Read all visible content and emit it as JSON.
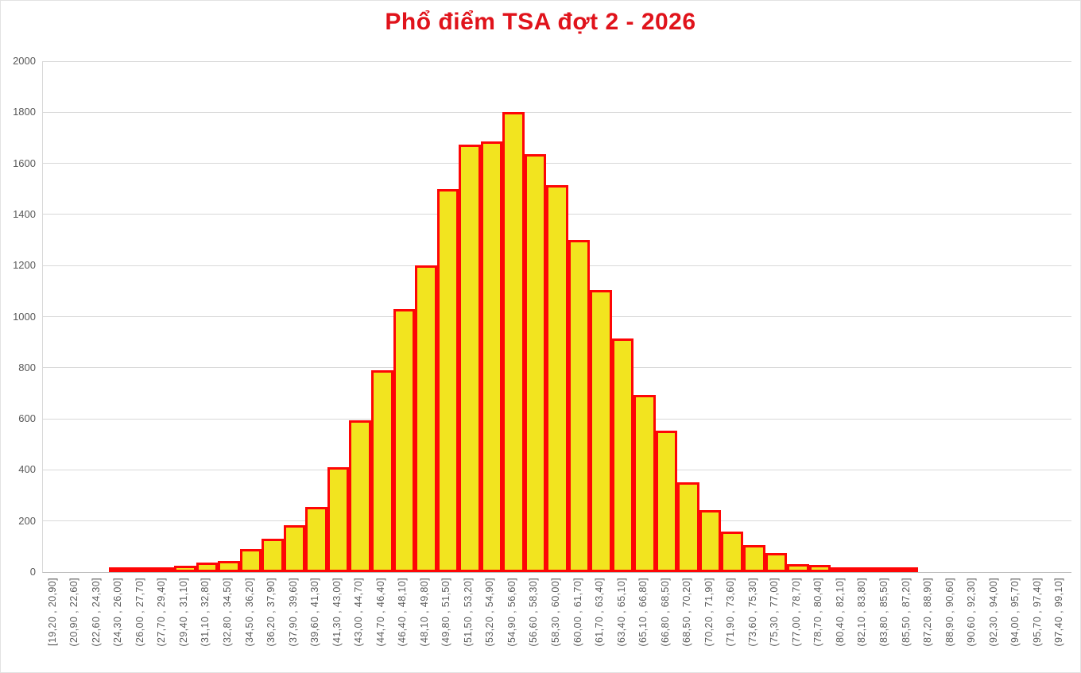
{
  "chart_data": {
    "type": "bar",
    "title": "Phổ điểm TSA đợt 2 - 2026",
    "xlabel": "",
    "ylabel": "",
    "ylim": [
      0,
      2000
    ],
    "ytick_interval": 200,
    "grid": "horizontal",
    "legend_position": "none",
    "bar_gap": 0,
    "categories": [
      "[19,20 , 20,90]",
      "(20,90 , 22,60]",
      "(22,60 , 24,30]",
      "(24,30 , 26,00]",
      "(26,00 , 27,70]",
      "(27,70 , 29,40]",
      "(29,40 , 31,10]",
      "(31,10 , 32,80]",
      "(32,80 , 34,50]",
      "(34,50 , 36,20]",
      "(36,20 , 37,90]",
      "(37,90 , 39,60]",
      "(39,60 , 41,30]",
      "(41,30 , 43,00]",
      "(43,00 , 44,70]",
      "(44,70 , 46,40]",
      "(46,40 , 48,10]",
      "(48,10 , 49,80]",
      "(49,80 , 51,50]",
      "(51,50 , 53,20]",
      "(53,20 , 54,90]",
      "(54,90 , 56,60]",
      "(56,60 , 58,30]",
      "(58,30 , 60,00]",
      "(60,00 , 61,70]",
      "(61,70 , 63,40]",
      "(63,40 , 65,10]",
      "(65,10 , 66,80]",
      "(66,80 , 68,50]",
      "(68,50 , 70,20]",
      "(70,20 , 71,90]",
      "(71,90 , 73,60]",
      "(73,60 , 75,30]",
      "(75,30 , 77,00]",
      "(77,00 , 78,70]",
      "(78,70 , 80,40]",
      "(80,40 , 82,10]",
      "(82,10 , 83,80]",
      "(83,80 , 85,50]",
      "(85,50 , 87,20]",
      "(87,20 , 88,90]",
      "(88,90 , 90,60]",
      "(90,60 , 92,30]",
      "(92,30 , 94,00]",
      "(94,00 , 95,70]",
      "(95,70 , 97,40]",
      "(97,40 , 99,10]"
    ],
    "values": [
      0,
      0,
      0,
      5,
      12,
      18,
      25,
      38,
      45,
      90,
      130,
      185,
      255,
      410,
      595,
      790,
      1030,
      1200,
      1500,
      1675,
      1685,
      1800,
      1635,
      1515,
      1300,
      1105,
      915,
      695,
      555,
      350,
      242,
      160,
      105,
      75,
      32,
      28,
      18,
      15,
      12,
      8,
      0,
      0,
      0,
      0,
      0,
      0,
      0
    ],
    "colors": {
      "bar_fill": "#F2E41F",
      "bar_border": "#FE0606",
      "title": "#E0131B",
      "axis_text": "#595959",
      "gridline": "#D9D9D9",
      "axis_line": "#BFBFBF",
      "background": "#FFFFFF"
    }
  }
}
